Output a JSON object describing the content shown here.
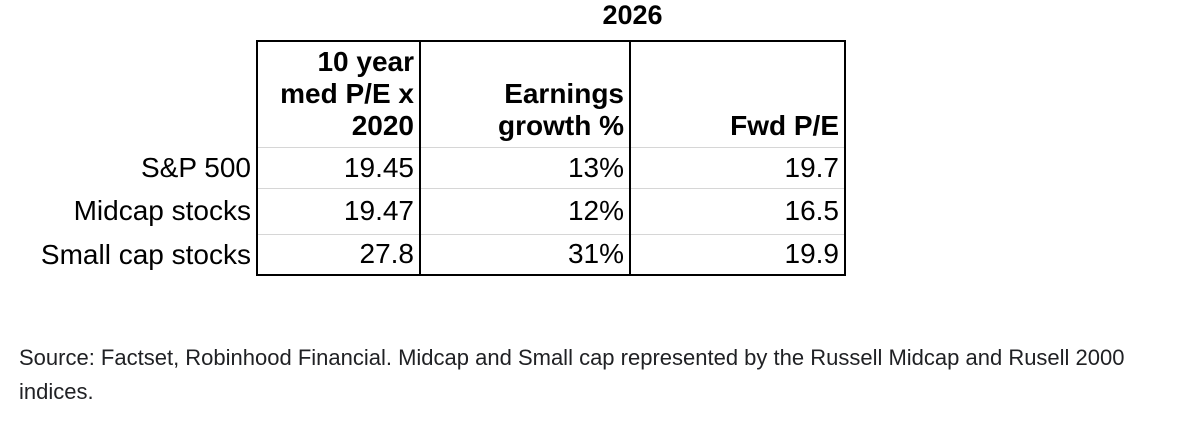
{
  "title": "2026",
  "table": {
    "header": {
      "col1_lines": [
        "10 year",
        "med P/E x",
        "2020"
      ],
      "col2_lines": [
        "Earnings",
        "growth %"
      ],
      "col3_lines": [
        "Fwd P/E"
      ]
    },
    "rows": [
      {
        "label": "S&P 500",
        "cells": [
          "19.45",
          "13%",
          "19.7"
        ]
      },
      {
        "label": "Midcap stocks",
        "cells": [
          "19.47",
          "12%",
          "16.5"
        ]
      },
      {
        "label": "Small cap stocks",
        "cells": [
          "27.8",
          "31%",
          "19.9"
        ]
      }
    ]
  },
  "source": {
    "lines": [
      "Source: Factset, Robinhood Financial. Midcap and Small cap represented by the Russell Midcap and Rusell 2000",
      "indices."
    ]
  },
  "colors": {
    "text": "#000000",
    "source_text": "#202124",
    "table_border": "#000000",
    "row_separator": "#d6d6d6",
    "background": "#ffffff"
  },
  "chart_data": {
    "type": "table",
    "title": "2026",
    "row_labels": [
      "S&P 500",
      "Midcap stocks",
      "Small cap stocks"
    ],
    "columns": [
      "10 year med P/E x 2020",
      "Earnings growth %",
      "Fwd P/E"
    ],
    "rows": [
      [
        "19.45",
        "13%",
        "19.7"
      ],
      [
        "19.47",
        "12%",
        "16.5"
      ],
      [
        "27.8",
        "31%",
        "19.9"
      ]
    ],
    "values": {
      "med_pe_x_2020": [
        19.45,
        19.47,
        27.8
      ],
      "earnings_growth_pct": [
        13,
        12,
        31
      ],
      "fwd_pe": [
        19.7,
        16.5,
        19.9
      ]
    },
    "source_note": "Source: Factset, Robinhood Financial. Midcap and Small cap represented by the Russell Midcap and Rusell 2000 indices."
  }
}
